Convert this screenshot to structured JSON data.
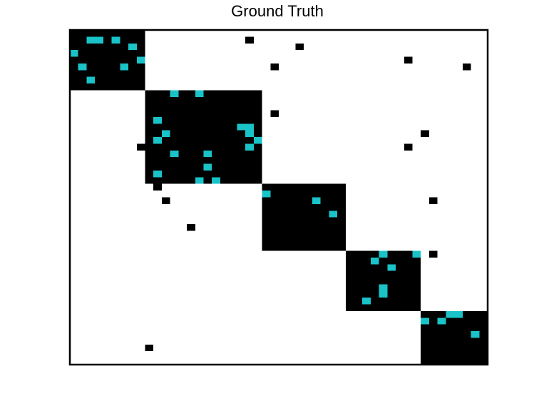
{
  "chart_data": {
    "type": "heatmap",
    "title": "Ground Truth",
    "matrix_size": 50,
    "colors": {
      "background": "#ffffff",
      "filled": "#000000",
      "highlight": "#19c3c8",
      "frame": "#000000"
    },
    "blocks": [
      {
        "rows": [
          1,
          9
        ],
        "cols": [
          1,
          9
        ]
      },
      {
        "rows": [
          10,
          23
        ],
        "cols": [
          10,
          23
        ]
      },
      {
        "rows": [
          24,
          33
        ],
        "cols": [
          24,
          33
        ]
      },
      {
        "rows": [
          34,
          42
        ],
        "cols": [
          34,
          42
        ]
      },
      {
        "rows": [
          43,
          50
        ],
        "cols": [
          43,
          50
        ]
      }
    ],
    "highlight_cells": [
      [
        2,
        3
      ],
      [
        2,
        4
      ],
      [
        2,
        6
      ],
      [
        3,
        8
      ],
      [
        4,
        1
      ],
      [
        5,
        9
      ],
      [
        6,
        2
      ],
      [
        6,
        7
      ],
      [
        8,
        3
      ],
      [
        10,
        13
      ],
      [
        10,
        16
      ],
      [
        14,
        11
      ],
      [
        15,
        21
      ],
      [
        15,
        22
      ],
      [
        16,
        12
      ],
      [
        16,
        22
      ],
      [
        17,
        11
      ],
      [
        17,
        23
      ],
      [
        18,
        22
      ],
      [
        19,
        13
      ],
      [
        19,
        17
      ],
      [
        21,
        17
      ],
      [
        22,
        11
      ],
      [
        23,
        16
      ],
      [
        23,
        18
      ],
      [
        25,
        24
      ],
      [
        26,
        30
      ],
      [
        28,
        32
      ],
      [
        34,
        38
      ],
      [
        34,
        42
      ],
      [
        35,
        37
      ],
      [
        36,
        39
      ],
      [
        39,
        38
      ],
      [
        40,
        38
      ],
      [
        41,
        36
      ],
      [
        43,
        46
      ],
      [
        43,
        47
      ],
      [
        44,
        43
      ],
      [
        44,
        45
      ],
      [
        46,
        49
      ]
    ],
    "outlier_cells": [
      [
        2,
        22
      ],
      [
        3,
        28
      ],
      [
        6,
        25
      ],
      [
        5,
        41
      ],
      [
        6,
        48
      ],
      [
        13,
        25
      ],
      [
        16,
        43
      ],
      [
        18,
        9
      ],
      [
        18,
        41
      ],
      [
        24,
        11
      ],
      [
        26,
        12
      ],
      [
        26,
        44
      ],
      [
        30,
        15
      ],
      [
        34,
        44
      ],
      [
        48,
        10
      ]
    ]
  }
}
